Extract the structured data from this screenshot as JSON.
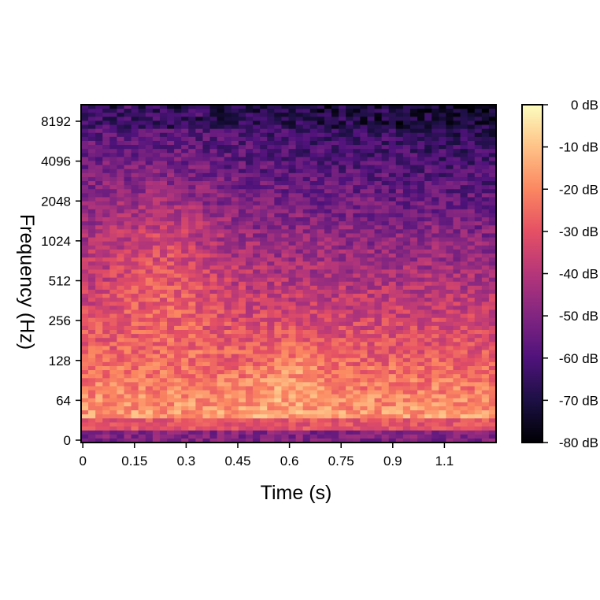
{
  "chart_data": {
    "type": "heatmap",
    "title": "",
    "xlabel": "Time (s)",
    "ylabel": "Frequency (Hz)",
    "x_ticks": [
      "0",
      "0.15",
      "0.3",
      "0.45",
      "0.6",
      "0.75",
      "0.9",
      "1.1"
    ],
    "x_tick_values": [
      0,
      0.15,
      0.3,
      0.45,
      0.6,
      0.75,
      0.9,
      1.05
    ],
    "xlim": [
      -0.005,
      1.2
    ],
    "y_ticks": [
      "0",
      "64",
      "128",
      "256",
      "512",
      "1024",
      "2048",
      "4096",
      "8192"
    ],
    "y_scale": "log (symmetric log frequency axis, 0 at bottom)",
    "ylim": [
      0,
      11025
    ],
    "colorbar": {
      "label_ticks": [
        "0 dB",
        "-10 dB",
        "-20 dB",
        "-30 dB",
        "-40 dB",
        "-50 dB",
        "-60 dB",
        "-70 dB",
        "-80 dB"
      ],
      "range_db": [
        -80,
        0
      ],
      "colormap": "magma",
      "colormap_stops": [
        "#000004",
        "#1c1044",
        "#4f127b",
        "#812581",
        "#b5367a",
        "#e55064",
        "#fb8761",
        "#fec287",
        "#fcfdbf"
      ]
    },
    "grid": false,
    "description_of_energy": "Strong energy below ~128 Hz across all times, peak brightness around 0.15-0.3 s in 256-1024 Hz; high frequencies (4096-8192 Hz) dark purple, darkest toward the end of the clip."
  }
}
